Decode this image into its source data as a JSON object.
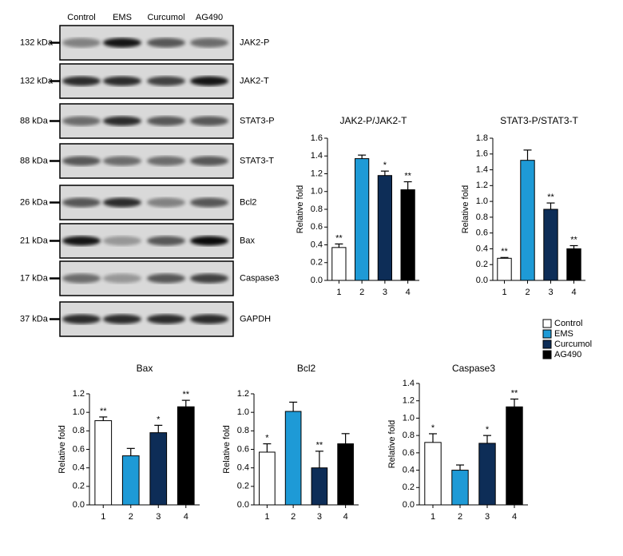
{
  "blot": {
    "lanes": [
      "Control",
      "EMS",
      "Curcumol",
      "AG490"
    ],
    "rows": [
      {
        "size": "132 kDa",
        "name": "JAK2-P"
      },
      {
        "size": "132 kDa",
        "name": "JAK2-T"
      },
      {
        "size": "88 kDa",
        "name": "STAT3-P"
      },
      {
        "size": "88 kDa",
        "name": "STAT3-T"
      },
      {
        "size": "26 kDa",
        "name": "Bcl2"
      },
      {
        "size": "21 kDa",
        "name": "Bax"
      },
      {
        "size": "17 kDa",
        "name": "Caspase3"
      },
      {
        "size": "37 kDa",
        "name": "GAPDH"
      }
    ]
  },
  "legend": [
    {
      "name": "Control",
      "color": "#ffffff"
    },
    {
      "name": "EMS",
      "color": "#1e9ad6"
    },
    {
      "name": "Curcumol",
      "color": "#0d2d57"
    },
    {
      "name": "AG490",
      "color": "#000000"
    }
  ],
  "chart_data": [
    {
      "type": "bar",
      "title": "JAK2-P/JAK2-T",
      "y_label": "Relative fold",
      "categories": [
        "1",
        "2",
        "3",
        "4"
      ],
      "values": [
        0.37,
        1.37,
        1.18,
        1.02
      ],
      "errors": [
        0.04,
        0.04,
        0.05,
        0.09
      ],
      "significance": [
        "**",
        null,
        "*",
        "**"
      ],
      "ylim": [
        0,
        1.6
      ],
      "yticks": [
        {
          "value": 0,
          "label": "0.0"
        },
        0.2,
        0.4,
        0.6,
        0.8,
        {
          "value": 1,
          "label": "1.0"
        },
        1.2,
        1.4,
        1.6
      ]
    },
    {
      "type": "bar",
      "title": "STAT3-P/STAT3-T",
      "y_label": "Relative fold",
      "categories": [
        "1",
        "2",
        "3",
        "4"
      ],
      "values": [
        0.28,
        1.52,
        0.9,
        0.4
      ],
      "errors": [
        0.01,
        0.13,
        0.08,
        0.04
      ],
      "significance": [
        "**",
        null,
        "**",
        "**"
      ],
      "ylim": [
        0,
        1.8
      ],
      "yticks": [
        {
          "value": 0,
          "label": "0.0"
        },
        0.2,
        0.4,
        0.6,
        0.8,
        {
          "value": 1,
          "label": "1.0"
        },
        1.2,
        1.4,
        1.6,
        1.8
      ]
    },
    {
      "type": "bar",
      "title": "Bax",
      "y_label": "Relative fold",
      "categories": [
        "1",
        "2",
        "3",
        "4"
      ],
      "values": [
        0.91,
        0.53,
        0.78,
        1.06
      ],
      "errors": [
        0.04,
        0.08,
        0.08,
        0.07
      ],
      "significance": [
        "**",
        null,
        "*",
        "**"
      ],
      "ylim": [
        0,
        1.2
      ],
      "yticks": [
        {
          "value": 0,
          "label": "0.0"
        },
        0.2,
        0.4,
        0.6,
        0.8,
        {
          "value": 1,
          "label": "1.0"
        },
        1.2
      ]
    },
    {
      "type": "bar",
      "title": "Bcl2",
      "y_label": "Relative fold",
      "categories": [
        "1",
        "2",
        "3",
        "4"
      ],
      "values": [
        0.57,
        1.01,
        0.4,
        0.66
      ],
      "errors": [
        0.09,
        0.1,
        0.18,
        0.11
      ],
      "significance": [
        "*",
        null,
        "**",
        null
      ],
      "ylim": [
        0,
        1.2
      ],
      "yticks": [
        {
          "value": 0,
          "label": "0.0"
        },
        0.2,
        0.4,
        0.6,
        0.8,
        {
          "value": 1,
          "label": "1.0"
        },
        1.2
      ]
    },
    {
      "type": "bar",
      "title": "Caspase3",
      "y_label": "Relative fold",
      "categories": [
        "1",
        "2",
        "3",
        "4"
      ],
      "values": [
        0.72,
        0.4,
        0.71,
        1.13
      ],
      "errors": [
        0.1,
        0.06,
        0.09,
        0.09
      ],
      "significance": [
        "*",
        null,
        "*",
        "**"
      ],
      "ylim": [
        0,
        1.4
      ],
      "yticks": [
        {
          "value": 0,
          "label": "0.0"
        },
        0.2,
        0.4,
        0.6,
        0.8,
        {
          "value": 1,
          "label": "1.0"
        },
        1.2,
        1.4
      ]
    }
  ]
}
